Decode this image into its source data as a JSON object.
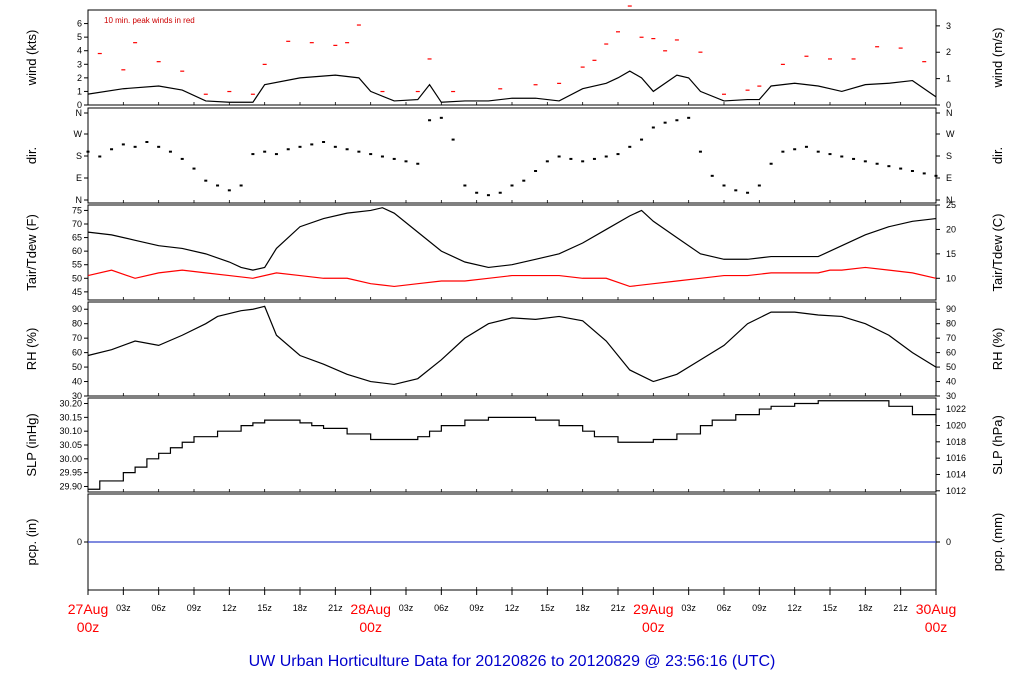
{
  "chart_data": {
    "type": "line",
    "footer": "UW Urban Horticulture Data for 20120826  to  20120829 @ 23:56:16  (UTC)",
    "x_axis": {
      "range_hours": [
        0,
        72
      ],
      "hour_labels": [
        "03z",
        "06z",
        "09z",
        "12z",
        "15z",
        "18z",
        "21z",
        "03z",
        "06z",
        "09z",
        "12z",
        "15z",
        "18z",
        "21z",
        "03z",
        "06z",
        "09z",
        "12z",
        "15z",
        "18z",
        "21z"
      ],
      "hour_label_positions": [
        3,
        6,
        9,
        12,
        15,
        18,
        21,
        27,
        30,
        33,
        36,
        39,
        42,
        45,
        51,
        54,
        57,
        60,
        63,
        66,
        69
      ],
      "day_labels": [
        {
          "day": "27Aug",
          "hour": "00z",
          "x": 0
        },
        {
          "day": "28Aug",
          "hour": "00z",
          "x": 24
        },
        {
          "day": "29Aug",
          "hour": "00z",
          "x": 48
        },
        {
          "day": "30Aug",
          "hour": "00z",
          "x": 72
        }
      ]
    },
    "panels": [
      {
        "id": "wind",
        "ylabel_left": "wind (kts)",
        "ylabel_right": "wind (m/s)",
        "ylim": [
          0,
          7
        ],
        "left_ticks": [
          "0",
          "1",
          "2",
          "3",
          "4",
          "5",
          "6"
        ],
        "right_ticks": [
          "0",
          "1",
          "2",
          "3"
        ],
        "note": "10 min. peak winds in red",
        "series": [
          {
            "name": "",
            "color": "#000000",
            "style": "line",
            "x": [
              0,
              3,
              6,
              8,
              10,
              12,
              13,
              14,
              15,
              18,
              21,
              23,
              24,
              26,
              28,
              29,
              30,
              32,
              34,
              36,
              38,
              40,
              42,
              44,
              45,
              46,
              47,
              48,
              50,
              51,
              52,
              54,
              56,
              57,
              58,
              60,
              62,
              63,
              64,
              66,
              68,
              70,
              72
            ],
            "y": [
              0.8,
              1.2,
              1.4,
              1.1,
              0.3,
              0.2,
              0.2,
              0.2,
              1.5,
              2.0,
              2.2,
              2.0,
              1.0,
              0.3,
              0.4,
              1.5,
              0.2,
              0.3,
              0.3,
              0.5,
              0.5,
              0.3,
              1.2,
              1.6,
              2.0,
              2.5,
              2.0,
              1.0,
              2.2,
              2.0,
              1.0,
              0.3,
              0.4,
              0.4,
              1.4,
              1.6,
              1.4,
              1.2,
              1.0,
              1.5,
              1.6,
              1.8,
              0.6
            ]
          },
          {
            "name": "",
            "color": "#ff0000",
            "style": "points",
            "x": [
              1,
              3,
              4,
              6,
              8,
              10,
              12,
              14,
              15,
              17,
              19,
              21,
              22,
              23,
              25,
              28,
              29,
              31,
              35,
              38,
              40,
              42,
              43,
              44,
              45,
              46,
              47,
              48,
              49,
              50,
              52,
              54,
              56,
              57,
              59,
              61,
              63,
              65,
              67,
              69,
              71
            ],
            "y": [
              3.8,
              2.6,
              4.6,
              3.2,
              2.5,
              0.8,
              1.0,
              0.8,
              3.0,
              4.7,
              4.6,
              4.4,
              4.6,
              5.9,
              1.0,
              1.0,
              3.4,
              1.0,
              1.2,
              1.5,
              1.6,
              2.8,
              3.3,
              4.5,
              5.4,
              7.3,
              5.0,
              4.9,
              4.0,
              4.8,
              3.9,
              0.8,
              1.1,
              1.4,
              3.0,
              3.6,
              3.4,
              3.4,
              4.3,
              4.2,
              3.2
            ]
          }
        ]
      },
      {
        "id": "dir",
        "ylabel_left": "dir.",
        "ylabel_right": "dir.",
        "ylim": [
          0,
          360
        ],
        "left_ticks": [
          "N",
          "E",
          "S",
          "W",
          "N"
        ],
        "right_ticks": [
          "N",
          "E",
          "S",
          "W",
          "N"
        ],
        "series": [
          {
            "name": "",
            "color": "#000000",
            "style": "points",
            "x": [
              0,
              1,
              2,
              3,
              4,
              5,
              6,
              7,
              8,
              9,
              10,
              11,
              12,
              13,
              14,
              15,
              16,
              17,
              18,
              19,
              20,
              21,
              22,
              23,
              24,
              25,
              26,
              27,
              28,
              29,
              30,
              31,
              32,
              33,
              34,
              35,
              36,
              37,
              38,
              39,
              40,
              41,
              42,
              43,
              44,
              45,
              46,
              47,
              48,
              49,
              50,
              51,
              52,
              53,
              54,
              55,
              56,
              57,
              58,
              59,
              60,
              61,
              62,
              63,
              64,
              65,
              66,
              67,
              68,
              69,
              70,
              71,
              72
            ],
            "y": [
              200,
              180,
              210,
              230,
              220,
              240,
              220,
              200,
              170,
              130,
              80,
              60,
              40,
              60,
              190,
              200,
              190,
              210,
              220,
              230,
              240,
              220,
              210,
              200,
              190,
              180,
              170,
              160,
              150,
              330,
              340,
              250,
              60,
              30,
              20,
              30,
              60,
              80,
              120,
              160,
              180,
              170,
              160,
              170,
              180,
              190,
              220,
              250,
              300,
              320,
              330,
              340,
              200,
              100,
              60,
              40,
              30,
              60,
              150,
              200,
              210,
              220,
              200,
              190,
              180,
              170,
              160,
              150,
              140,
              130,
              120,
              110,
              100
            ]
          }
        ]
      },
      {
        "id": "temp",
        "ylabel_left": "Tair/Tdew (F)",
        "ylabel_right": "Tair/Tdew (C)",
        "ylim": [
          42,
          77
        ],
        "left_ticks": [
          "45",
          "50",
          "55",
          "60",
          "65",
          "70",
          "75"
        ],
        "right_ticks": [
          "10",
          "15",
          "20",
          "25"
        ],
        "series": [
          {
            "name": "",
            "color": "#000000",
            "style": "line",
            "x": [
              0,
              2,
              4,
              6,
              8,
              10,
              12,
              13,
              14,
              15,
              16,
              18,
              20,
              22,
              24,
              25,
              26,
              28,
              30,
              32,
              34,
              36,
              38,
              40,
              42,
              44,
              46,
              47,
              48,
              50,
              52,
              54,
              56,
              58,
              60,
              62,
              64,
              66,
              68,
              70,
              72
            ],
            "y": [
              67,
              66,
              64,
              62,
              61,
              59,
              56,
              54,
              53,
              54,
              61,
              69,
              72,
              74,
              75,
              76,
              74,
              67,
              60,
              56,
              54,
              55,
              57,
              59,
              63,
              68,
              73,
              75,
              71,
              65,
              59,
              57,
              57,
              58,
              58,
              58,
              62,
              66,
              69,
              71,
              72
            ]
          },
          {
            "name": "",
            "color": "#ff0000",
            "style": "line",
            "x": [
              0,
              2,
              4,
              6,
              8,
              10,
              12,
              14,
              16,
              18,
              20,
              22,
              24,
              26,
              28,
              30,
              32,
              34,
              36,
              38,
              40,
              42,
              44,
              46,
              48,
              50,
              52,
              54,
              56,
              58,
              60,
              62,
              63,
              64,
              66,
              68,
              70,
              72
            ],
            "y": [
              51,
              53,
              50,
              52,
              53,
              52,
              51,
              50,
              52,
              51,
              50,
              50,
              48,
              47,
              48,
              49,
              49,
              50,
              51,
              51,
              51,
              50,
              50,
              47,
              48,
              49,
              50,
              51,
              51,
              52,
              52,
              52,
              53,
              53,
              54,
              53,
              52,
              50
            ]
          }
        ]
      },
      {
        "id": "rh",
        "ylabel_left": "RH (%)",
        "ylabel_right": "RH (%)",
        "ylim": [
          30,
          95
        ],
        "left_ticks": [
          "30",
          "40",
          "50",
          "60",
          "70",
          "80",
          "90"
        ],
        "right_ticks": [
          "30",
          "40",
          "50",
          "60",
          "70",
          "80",
          "90"
        ],
        "series": [
          {
            "name": "",
            "color": "#000000",
            "style": "line",
            "x": [
              0,
              2,
              4,
              6,
              8,
              10,
              11,
              12,
              13,
              14,
              15,
              16,
              18,
              20,
              22,
              24,
              26,
              28,
              30,
              32,
              34,
              36,
              38,
              40,
              42,
              44,
              46,
              48,
              50,
              52,
              54,
              56,
              58,
              60,
              62,
              64,
              66,
              68,
              70,
              72
            ],
            "y": [
              58,
              62,
              68,
              65,
              72,
              80,
              85,
              87,
              89,
              90,
              92,
              72,
              58,
              52,
              45,
              40,
              38,
              42,
              55,
              70,
              80,
              84,
              83,
              85,
              82,
              68,
              48,
              40,
              45,
              55,
              65,
              80,
              88,
              88,
              86,
              85,
              80,
              72,
              60,
              50
            ]
          }
        ]
      },
      {
        "id": "slp",
        "ylabel_left": "SLP (inHg)",
        "ylabel_right": "SLP (hPa)",
        "ylim": [
          29.88,
          30.22
        ],
        "left_ticks": [
          "29.90",
          "29.95",
          "30.00",
          "30.05",
          "30.10",
          "30.15",
          "30.20"
        ],
        "right_ticks": [
          "1012",
          "1014",
          "1016",
          "1018",
          "1020",
          "1022"
        ],
        "series": [
          {
            "name": "",
            "color": "#000000",
            "style": "step",
            "x": [
              0,
              1,
              3,
              4,
              5,
              6,
              7,
              8,
              9,
              11,
              12,
              13,
              14,
              15,
              18,
              19,
              20,
              22,
              24,
              26,
              28,
              29,
              30,
              32,
              34,
              36,
              38,
              40,
              42,
              43,
              45,
              46,
              48,
              50,
              52,
              53,
              55,
              57,
              58,
              60,
              62,
              63,
              64,
              66,
              68,
              70,
              72
            ],
            "y": [
              29.89,
              29.92,
              29.95,
              29.97,
              30.0,
              30.02,
              30.04,
              30.06,
              30.08,
              30.1,
              30.1,
              30.12,
              30.13,
              30.14,
              30.13,
              30.12,
              30.11,
              30.09,
              30.07,
              30.07,
              30.08,
              30.1,
              30.12,
              30.14,
              30.15,
              30.15,
              30.14,
              30.12,
              30.1,
              30.08,
              30.06,
              30.06,
              30.07,
              30.09,
              30.12,
              30.14,
              30.16,
              30.18,
              30.19,
              30.2,
              30.21,
              30.21,
              30.21,
              30.21,
              30.19,
              30.16,
              30.13
            ]
          }
        ]
      },
      {
        "id": "pcp",
        "ylabel_left": "pcp. (in)",
        "ylabel_right": "pcp. (mm)",
        "ylim": [
          -1,
          1
        ],
        "left_ticks": [
          "0"
        ],
        "right_ticks": [
          "0"
        ],
        "series": [
          {
            "name": "",
            "color": "#3344cc",
            "style": "line",
            "x": [
              0,
              72
            ],
            "y": [
              0,
              0
            ]
          }
        ]
      }
    ]
  }
}
